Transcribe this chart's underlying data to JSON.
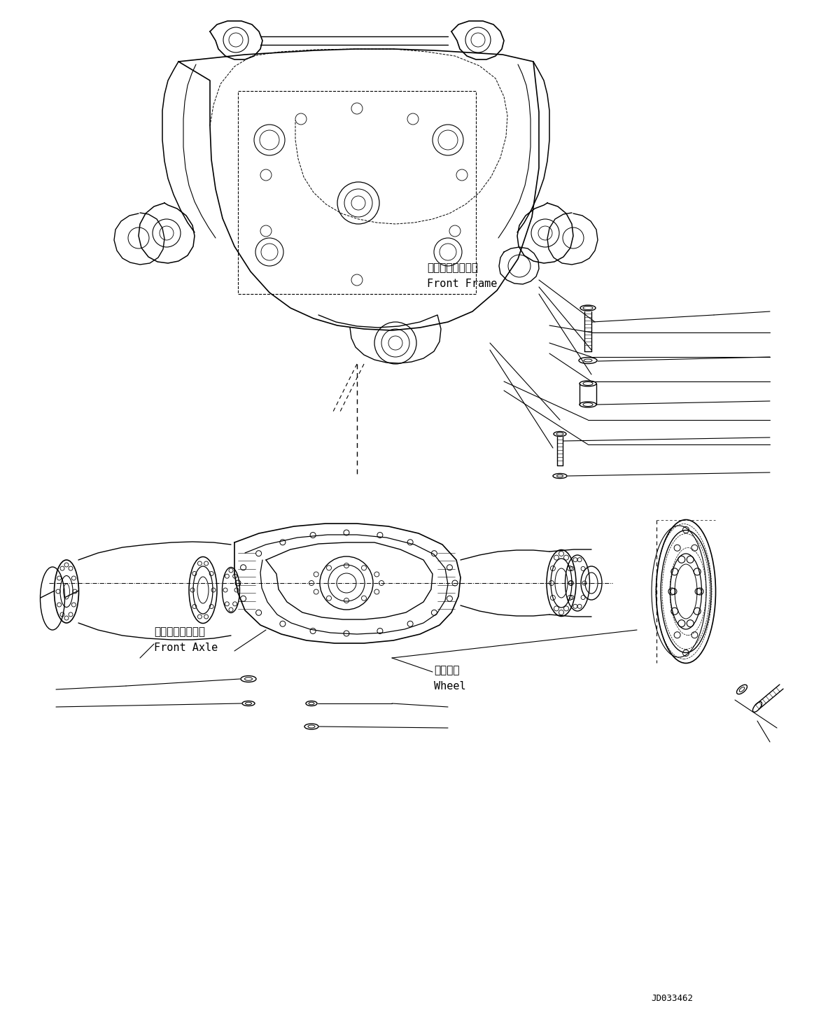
{
  "background_color": "#ffffff",
  "line_color": "#000000",
  "fig_width": 11.63,
  "fig_height": 14.53,
  "dpi": 100,
  "labels": {
    "front_frame_jp": "フロントフレーム",
    "front_frame_en": "Front Frame",
    "front_axle_jp": "フロントアクスル",
    "front_axle_en": "Front Axle",
    "wheel_jp": "ホイール",
    "wheel_en": "Wheel",
    "drawing_number": "JD033462"
  }
}
